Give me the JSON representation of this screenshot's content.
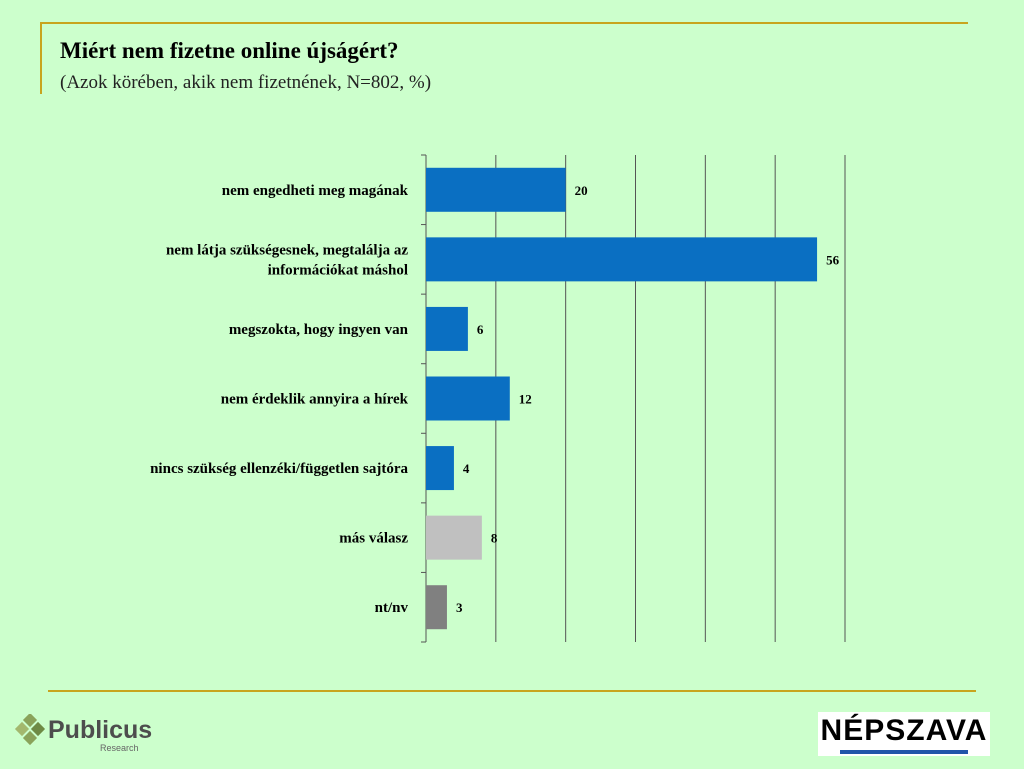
{
  "header": {
    "title": "Miért nem fizetne online újságért?",
    "subtitle": "(Azok körében, akik nem fizetnének, N=802, %)"
  },
  "chart_data": {
    "type": "bar",
    "orientation": "horizontal",
    "categories": [
      [
        "nem engedheti meg magának"
      ],
      [
        "nem látja szükségesnek, megtalálja az",
        "információkat máshol"
      ],
      [
        "megszokta, hogy ingyen van"
      ],
      [
        "nem érdeklik annyira a hírek"
      ],
      [
        "nincs szükség ellenzéki/független sajtóra"
      ],
      [
        "más válasz"
      ],
      [
        "nt/nv"
      ]
    ],
    "values": [
      20,
      56,
      6,
      12,
      4,
      8,
      3
    ],
    "colors": [
      "#0a6fc2",
      "#0a6fc2",
      "#0a6fc2",
      "#0a6fc2",
      "#0a6fc2",
      "#c0c0c0",
      "#808080"
    ],
    "xlim": [
      0,
      60
    ],
    "grid": true,
    "title": "Miért nem fizetne online újságért?",
    "xlabel": "",
    "ylabel": ""
  },
  "logos": {
    "left": {
      "name": "Publicus",
      "sub": "Research"
    },
    "right": {
      "name": "NÉPSZAVA"
    }
  }
}
